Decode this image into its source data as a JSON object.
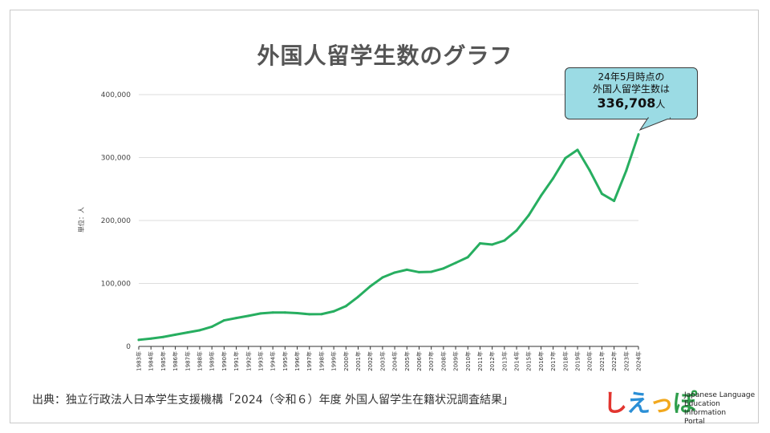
{
  "title": "外国人留学生数のグラフ",
  "callout": {
    "line1": "24年5月時点の",
    "line2": "外国人留学生数は",
    "value": "336,708",
    "unit": "人"
  },
  "source": "出典：独立行政法人日本学生支援機構「2024（令和６）年度 外国人留学生在籍状況調査結果」",
  "logo": {
    "mark": [
      "し",
      "え",
      "っ",
      "ぽ"
    ],
    "text_lines": [
      "Japanese Language",
      "Education Information",
      "Portal"
    ]
  },
  "colors": {
    "line": "#27ae60",
    "callout_bg": "#9bdbe4",
    "title": "#555555"
  },
  "chart_data": {
    "type": "line",
    "title": "外国人留学生数のグラフ",
    "xlabel": "",
    "ylabel": "単位：人",
    "ylim": [
      0,
      400000
    ],
    "yticks": [
      0,
      100000,
      200000,
      300000,
      400000
    ],
    "ytick_labels": [
      "0",
      "100,000",
      "200,000",
      "300,000",
      "400,000"
    ],
    "grid": true,
    "categories": [
      "1983年",
      "1984年",
      "1985年",
      "1986年",
      "1987年",
      "1988年",
      "1989年",
      "1990年",
      "1991年",
      "1992年",
      "1993年",
      "1994年",
      "1995年",
      "1996年",
      "1997年",
      "1998年",
      "1999年",
      "2000年",
      "2001年",
      "2002年",
      "2003年",
      "2004年",
      "2005年",
      "2006年",
      "2007年",
      "2008年",
      "2009年",
      "2010年",
      "2011年",
      "2012年",
      "2013年",
      "2014年",
      "2015年",
      "2016年",
      "2017年",
      "2018年",
      "2019年",
      "2020年",
      "2021年",
      "2022年",
      "2023年",
      "2024年"
    ],
    "series": [
      {
        "values": [
          10428,
          12410,
          15009,
          18631,
          22154,
          25643,
          31251,
          41347,
          45066,
          48561,
          52405,
          53787,
          53847,
          52921,
          51047,
          51298,
          55755,
          64011,
          78812,
          95550,
          109508,
          117302,
          121812,
          117927,
          118498,
          123829,
          132720,
          141774,
          163697,
          161848,
          168145,
          184155,
          208379,
          239287,
          267042,
          298980,
          312214,
          279597,
          242444,
          231146,
          279274,
          336708
        ]
      }
    ]
  }
}
